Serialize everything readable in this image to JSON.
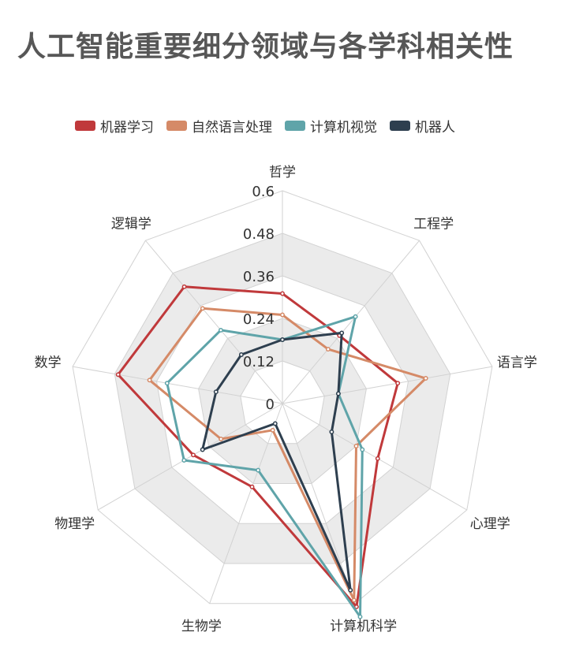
{
  "chart_data": {
    "type": "radar",
    "title": "人工智能重要细分领域与各学科相关性",
    "categories": [
      "哲学",
      "工程学",
      "语言学",
      "心理学",
      "计算机科学",
      "生物学",
      "物理学",
      "数学",
      "逻辑学"
    ],
    "rmax": 0.6,
    "ticks": [
      "0",
      "0.12",
      "0.24",
      "0.36",
      "0.48",
      "0.6"
    ],
    "tick_values": [
      0,
      0.12,
      0.24,
      0.36,
      0.48,
      0.6
    ],
    "grid_band_fill": "#ebebeb",
    "grid_line_color": "#d2d2d2",
    "series": [
      {
        "name": "机器学习",
        "color": "#c0393b",
        "values": [
          0.31,
          0.25,
          0.33,
          0.31,
          0.61,
          0.25,
          0.29,
          0.47,
          0.43
        ]
      },
      {
        "name": "自然语言处理",
        "color": "#d58a67",
        "values": [
          0.25,
          0.2,
          0.41,
          0.24,
          0.59,
          0.08,
          0.2,
          0.38,
          0.35
        ]
      },
      {
        "name": "计算机视觉",
        "color": "#5fa4a9",
        "values": [
          0.18,
          0.32,
          0.16,
          0.26,
          0.64,
          0.2,
          0.32,
          0.33,
          0.27
        ]
      },
      {
        "name": "机器人",
        "color": "#2e3f4f",
        "values": [
          0.18,
          0.26,
          0.16,
          0.16,
          0.56,
          0.06,
          0.26,
          0.19,
          0.18
        ]
      }
    ]
  }
}
